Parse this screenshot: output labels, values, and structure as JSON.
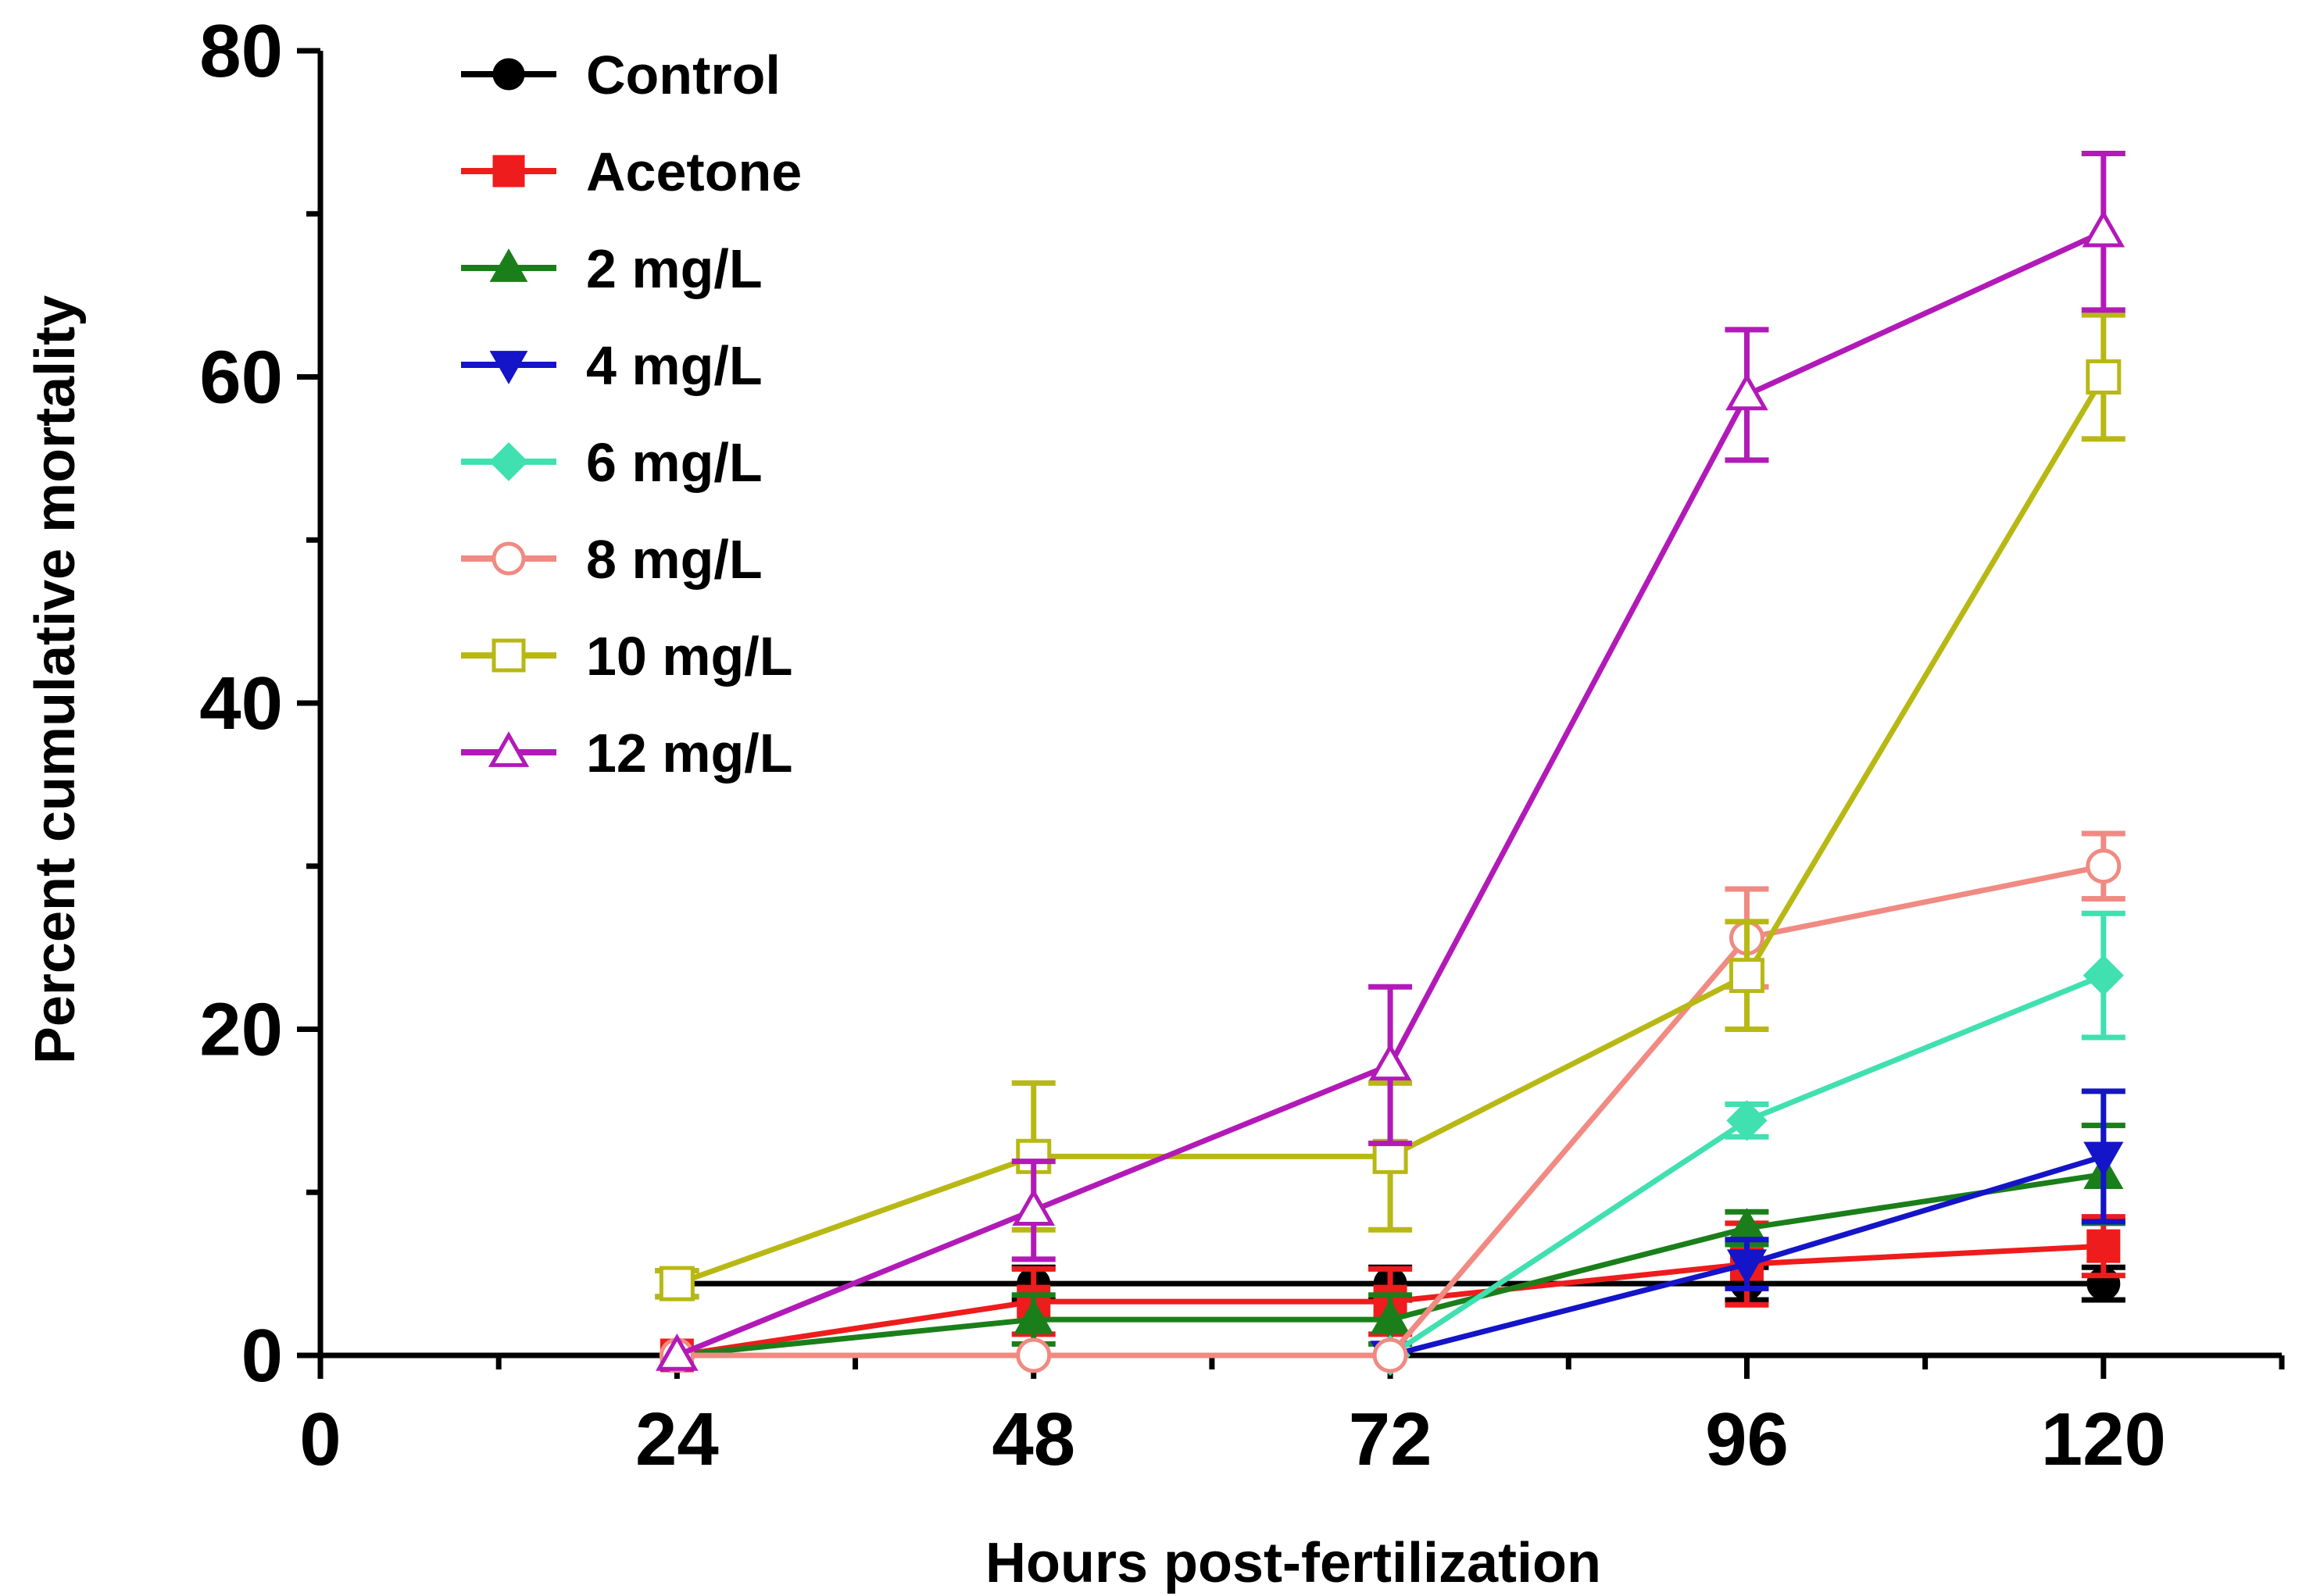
{
  "chart_data": {
    "type": "line",
    "title": "",
    "xlabel": "Hours post-fertilization",
    "ylabel": "Percent cumulative mortality",
    "xlim": [
      0,
      132
    ],
    "ylim": [
      0,
      80
    ],
    "x": [
      24,
      48,
      72,
      96,
      120
    ],
    "x_ticks": [
      0,
      24,
      48,
      72,
      96,
      120
    ],
    "x_tick_labels": [
      "0",
      "24",
      "48",
      "72",
      "96",
      "120"
    ],
    "y_ticks": [
      0,
      20,
      40,
      60,
      80
    ],
    "y_tick_labels": [
      "0",
      "20",
      "40",
      "60",
      "80"
    ],
    "grid": false,
    "legend_position": "top-left",
    "series": [
      {
        "name": "Control",
        "color": "#000000",
        "marker": "circle-filled",
        "x": [
          24,
          48,
          72,
          96,
          120
        ],
        "values": [
          4.4,
          4.4,
          4.4,
          4.4,
          4.4
        ],
        "errors": [
          0.8,
          1.0,
          1.0,
          1.0,
          1.0
        ]
      },
      {
        "name": "Acetone",
        "color": "#ee1c1c",
        "marker": "square-filled",
        "x": [
          24,
          48,
          72,
          96,
          120
        ],
        "values": [
          0,
          3.3,
          3.3,
          5.6,
          6.7
        ],
        "errors": [
          0,
          2.0,
          2.0,
          2.5,
          1.8
        ]
      },
      {
        "name": "2 mg/L",
        "color": "#1a7f1a",
        "marker": "triangle-up-filled",
        "x": [
          24,
          48,
          72,
          96,
          120
        ],
        "values": [
          0,
          2.2,
          2.2,
          7.8,
          11.1
        ],
        "errors": [
          0,
          1.5,
          1.5,
          1.0,
          3.0
        ]
      },
      {
        "name": "4 mg/L",
        "color": "#1414c8",
        "marker": "triangle-down-filled",
        "x": [
          72,
          96,
          120
        ],
        "values": [
          0,
          5.6,
          12.2
        ],
        "errors": [
          0,
          1.5,
          4.0
        ]
      },
      {
        "name": "6 mg/L",
        "color": "#40e0b0",
        "marker": "diamond-filled",
        "x": [
          72,
          96,
          120
        ],
        "values": [
          0,
          14.4,
          23.3
        ],
        "errors": [
          0,
          1.0,
          3.8
        ]
      },
      {
        "name": "8 mg/L",
        "color": "#f08a82",
        "marker": "circle-open",
        "x": [
          24,
          48,
          72,
          96,
          120
        ],
        "values": [
          0,
          0,
          0,
          25.6,
          30.0
        ],
        "errors": [
          0,
          0,
          0,
          3.0,
          2.0
        ]
      },
      {
        "name": "10 mg/L",
        "color": "#b8b814",
        "marker": "square-open",
        "x": [
          24,
          48,
          72,
          96,
          120
        ],
        "values": [
          4.4,
          12.2,
          12.2,
          23.3,
          60.0
        ],
        "errors": [
          0.8,
          4.5,
          4.5,
          3.3,
          3.8
        ]
      },
      {
        "name": "12 mg/L",
        "color": "#b21ab8",
        "marker": "triangle-up-open",
        "x": [
          24,
          48,
          72,
          96,
          120
        ],
        "values": [
          0,
          8.9,
          17.8,
          58.9,
          68.9
        ],
        "errors": [
          0,
          3.0,
          4.8,
          4.0,
          4.8
        ]
      }
    ]
  }
}
